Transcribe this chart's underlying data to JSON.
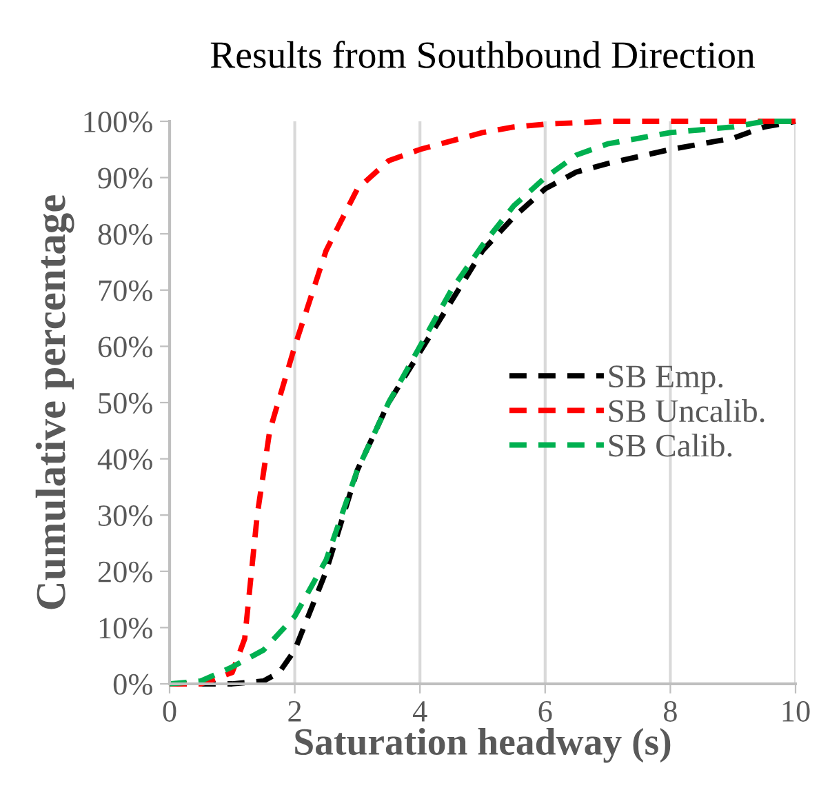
{
  "chart_data": {
    "type": "line",
    "title": "Results from Southbound Direction",
    "xlabel": "Saturation headway (s)",
    "ylabel": "Cumulative percentage",
    "xlim": [
      0,
      10
    ],
    "xticks": [
      0,
      2,
      4,
      6,
      8,
      10
    ],
    "ylim": [
      0,
      100
    ],
    "yticks": [
      {
        "value": 0,
        "label": "0%"
      },
      {
        "value": 10,
        "label": "10%"
      },
      {
        "value": 20,
        "label": "20%"
      },
      {
        "value": 30,
        "label": "30%"
      },
      {
        "value": 40,
        "label": "40%"
      },
      {
        "value": 50,
        "label": "50%"
      },
      {
        "value": 60,
        "label": "60%"
      },
      {
        "value": 70,
        "label": "70%"
      },
      {
        "value": 80,
        "label": "80%"
      },
      {
        "value": 90,
        "label": "90%"
      },
      {
        "value": 100,
        "label": "100%"
      }
    ],
    "grid": "x",
    "legend": "right",
    "line_style": "dashed",
    "marker": "none",
    "series": [
      {
        "name": "SB Emp.",
        "color": "#000000",
        "x": [
          0,
          0.5,
          1,
          1.5,
          1.75,
          2,
          2.5,
          3,
          3.5,
          4,
          4.5,
          5,
          5.5,
          6,
          6.5,
          7,
          8,
          9,
          9.5,
          10
        ],
        "values": [
          0,
          0,
          0,
          0.5,
          2,
          6,
          20,
          38,
          50,
          59,
          68,
          77,
          83,
          88,
          91,
          92.5,
          95,
          97,
          99,
          100
        ]
      },
      {
        "name": "SB Uncalib.",
        "color": "#ff0000",
        "x": [
          0,
          0.5,
          1,
          1.2,
          1.4,
          1.6,
          2,
          2.5,
          3,
          3.5,
          4,
          5,
          5.5,
          6,
          7,
          10
        ],
        "values": [
          0,
          0,
          2,
          8,
          30,
          45,
          60,
          77,
          88,
          93,
          95,
          98,
          99,
          99.5,
          100,
          100
        ]
      },
      {
        "name": "SB Calib.",
        "color": "#00b050",
        "x": [
          0,
          0.5,
          1,
          1.5,
          2,
          2.5,
          3,
          3.5,
          4,
          4.5,
          5,
          5.5,
          6,
          6.5,
          7,
          8,
          9,
          9.5,
          10
        ],
        "values": [
          0,
          0.5,
          3,
          6,
          12,
          22,
          38,
          50,
          60,
          70,
          78,
          85,
          90,
          94,
          96,
          98,
          99,
          100,
          100
        ]
      }
    ]
  }
}
